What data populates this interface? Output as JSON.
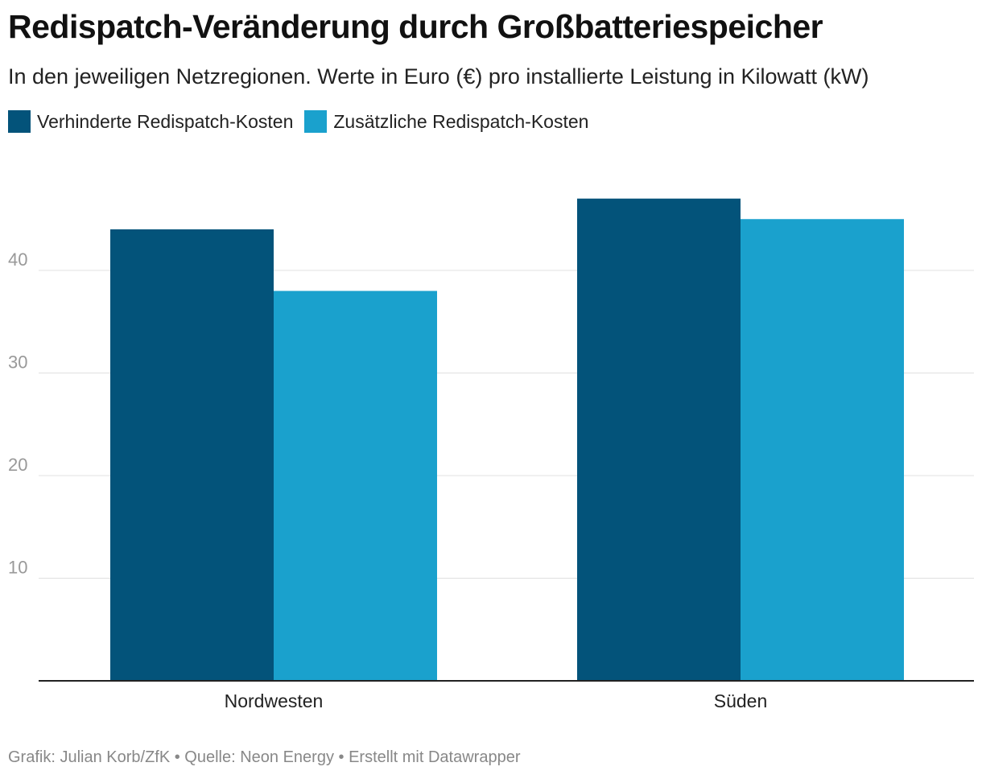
{
  "chart_data": {
    "type": "bar",
    "title": "Redispatch-Veränderung durch Großbatteriespeicher",
    "subtitle": "In den jeweiligen Netzregionen. Werte in Euro (€) pro installierte Leistung in Kilowatt (kW)",
    "categories": [
      "Nordwesten",
      "Süden"
    ],
    "series": [
      {
        "name": "Verhinderte Redispatch-Kosten",
        "color": "#03537a",
        "values": [
          44,
          47
        ]
      },
      {
        "name": "Zusätzliche Redispatch-Kosten",
        "color": "#1aa1cd",
        "values": [
          38,
          45
        ]
      }
    ],
    "yticks": [
      "10",
      "20",
      "30",
      "40"
    ],
    "ylim": [
      0,
      50
    ],
    "xlabel": "",
    "ylabel": "",
    "grid": true,
    "legend": "top-left"
  },
  "footer": "Grafik: Julian Korb/ZfK • Quelle: Neon Energy • Erstellt mit Datawrapper"
}
